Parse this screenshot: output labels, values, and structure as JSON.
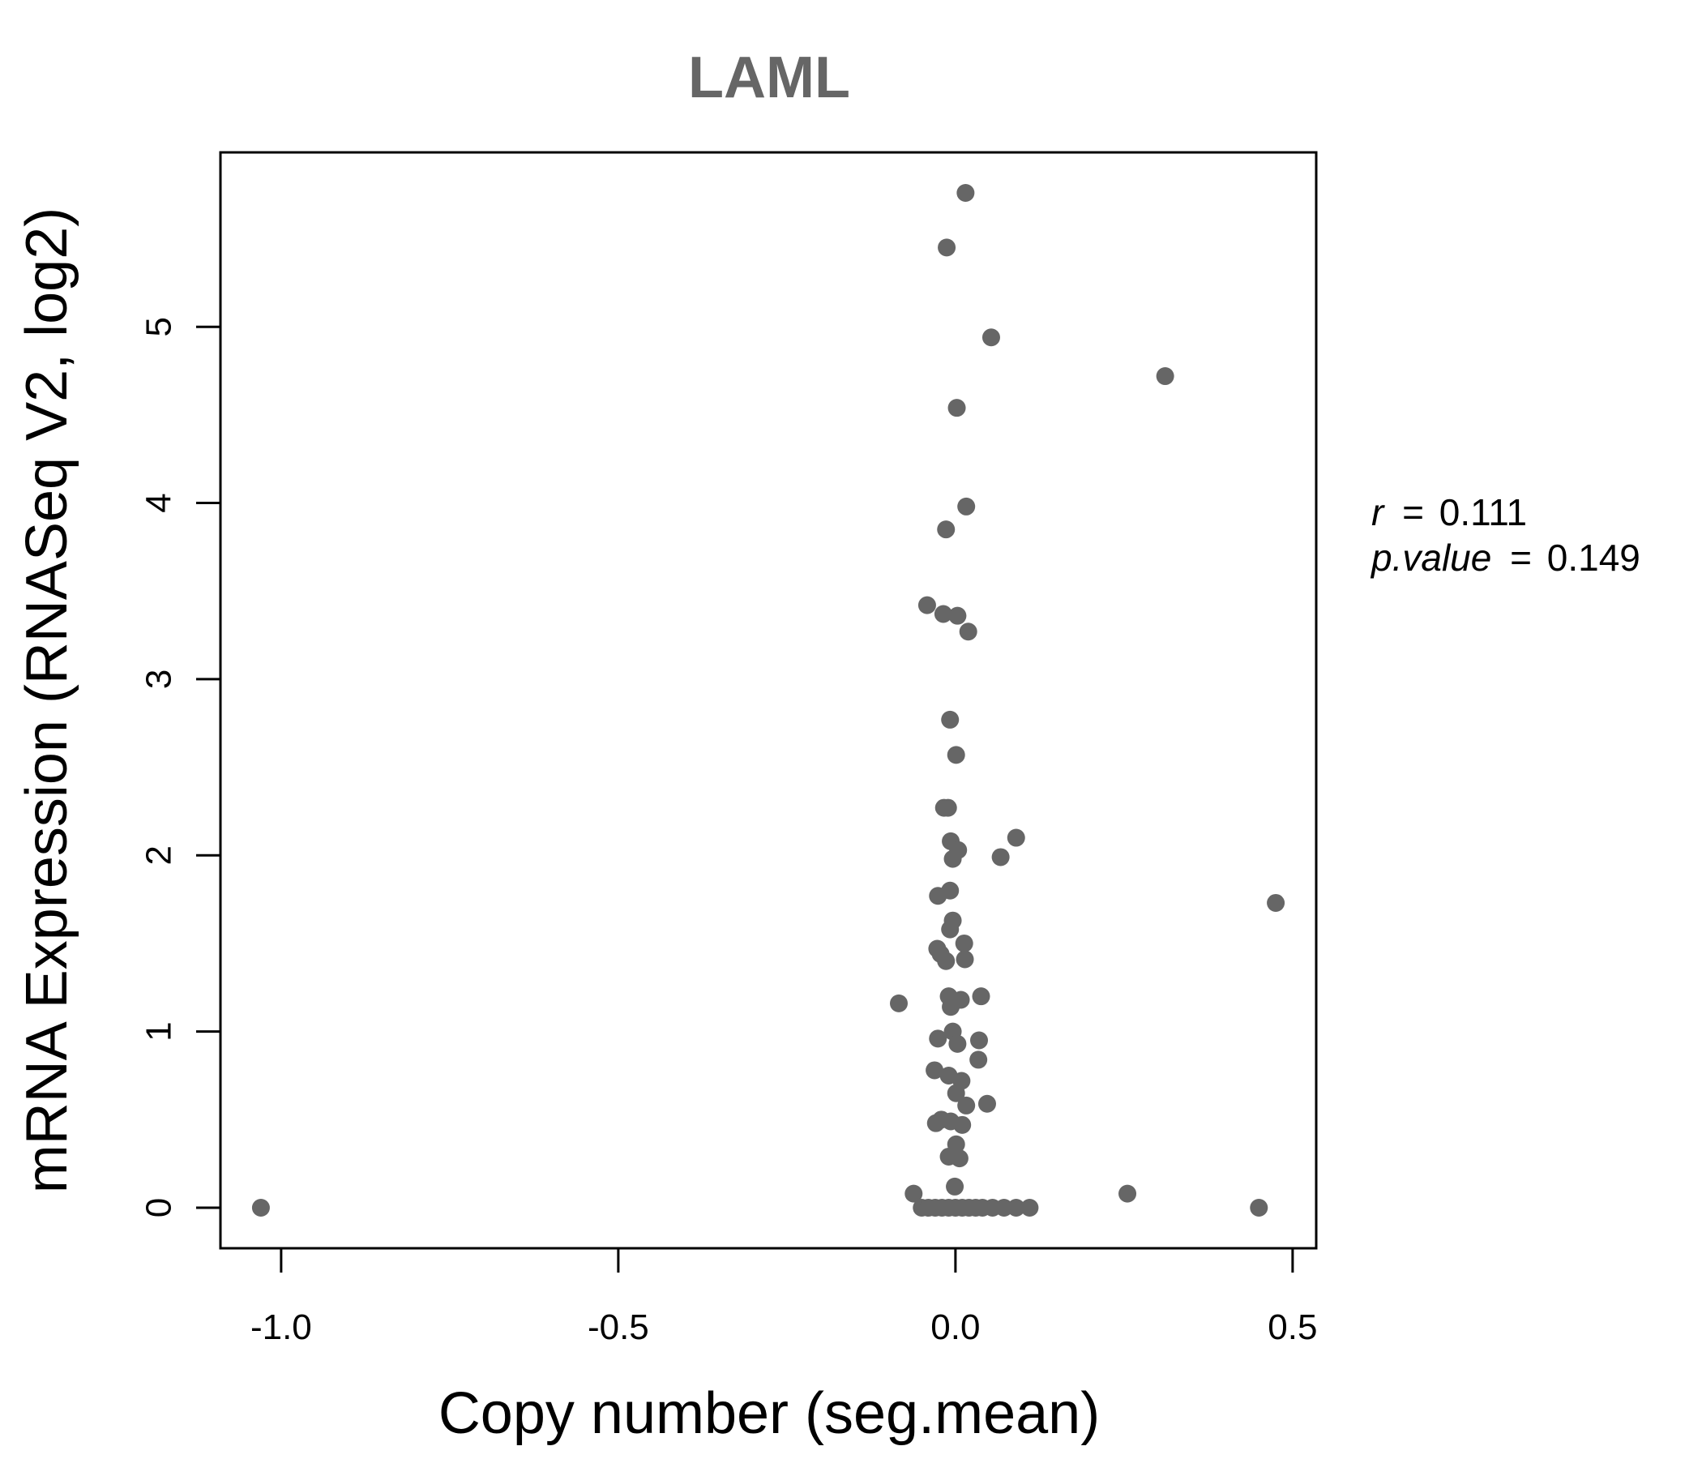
{
  "chart_data": {
    "type": "scatter",
    "title": "LAML",
    "xlabel": "Copy number (seg.mean)",
    "ylabel": "mRNA Expression (RNASeq V2, log2)",
    "xlim": [
      -1.09,
      0.535
    ],
    "ylim": [
      -0.23,
      5.99
    ],
    "x_ticks": [
      -1.0,
      -0.5,
      0.0,
      0.5
    ],
    "x_tick_labels": [
      "-1.0",
      "-0.5",
      "0.0",
      "0.5"
    ],
    "y_ticks": [
      0,
      1,
      2,
      3,
      4,
      5
    ],
    "y_tick_labels": [
      "0",
      "1",
      "2",
      "3",
      "4",
      "5"
    ],
    "grid": false,
    "legend": "none",
    "point_color": "#666666",
    "stats": {
      "r_label": "r",
      "r_value": "0.111",
      "p_label": "p.value",
      "p_value": "0.149"
    },
    "points": [
      {
        "x": 0.015,
        "y": 5.76
      },
      {
        "x": -0.013,
        "y": 5.45
      },
      {
        "x": 0.053,
        "y": 4.94
      },
      {
        "x": 0.311,
        "y": 4.72
      },
      {
        "x": 0.002,
        "y": 4.54
      },
      {
        "x": 0.016,
        "y": 3.98
      },
      {
        "x": -0.014,
        "y": 3.85
      },
      {
        "x": -0.042,
        "y": 3.42
      },
      {
        "x": -0.018,
        "y": 3.37
      },
      {
        "x": 0.003,
        "y": 3.36
      },
      {
        "x": 0.019,
        "y": 3.27
      },
      {
        "x": -0.008,
        "y": 2.77
      },
      {
        "x": 0.001,
        "y": 2.57
      },
      {
        "x": -0.017,
        "y": 2.27
      },
      {
        "x": -0.011,
        "y": 2.27
      },
      {
        "x": 0.09,
        "y": 2.1
      },
      {
        "x": -0.007,
        "y": 2.08
      },
      {
        "x": 0.004,
        "y": 2.03
      },
      {
        "x": 0.067,
        "y": 1.99
      },
      {
        "x": -0.004,
        "y": 1.98
      },
      {
        "x": -0.008,
        "y": 1.8
      },
      {
        "x": -0.026,
        "y": 1.77
      },
      {
        "x": 0.475,
        "y": 1.73
      },
      {
        "x": -0.004,
        "y": 1.63
      },
      {
        "x": -0.008,
        "y": 1.58
      },
      {
        "x": 0.013,
        "y": 1.5
      },
      {
        "x": -0.027,
        "y": 1.47
      },
      {
        "x": -0.022,
        "y": 1.44
      },
      {
        "x": 0.014,
        "y": 1.41
      },
      {
        "x": -0.014,
        "y": 1.4
      },
      {
        "x": 0.038,
        "y": 1.2
      },
      {
        "x": -0.01,
        "y": 1.2
      },
      {
        "x": 0.008,
        "y": 1.18
      },
      {
        "x": -0.002,
        "y": 1.17
      },
      {
        "x": -0.084,
        "y": 1.16
      },
      {
        "x": -0.007,
        "y": 1.14
      },
      {
        "x": -0.004,
        "y": 1.0
      },
      {
        "x": -0.026,
        "y": 0.96
      },
      {
        "x": 0.035,
        "y": 0.95
      },
      {
        "x": 0.003,
        "y": 0.93
      },
      {
        "x": 0.034,
        "y": 0.84
      },
      {
        "x": -0.031,
        "y": 0.78
      },
      {
        "x": -0.01,
        "y": 0.75
      },
      {
        "x": 0.009,
        "y": 0.72
      },
      {
        "x": 0.001,
        "y": 0.65
      },
      {
        "x": 0.047,
        "y": 0.59
      },
      {
        "x": 0.016,
        "y": 0.58
      },
      {
        "x": -0.021,
        "y": 0.5
      },
      {
        "x": -0.007,
        "y": 0.49
      },
      {
        "x": -0.029,
        "y": 0.48
      },
      {
        "x": 0.01,
        "y": 0.47
      },
      {
        "x": 0.001,
        "y": 0.36
      },
      {
        "x": -0.01,
        "y": 0.29
      },
      {
        "x": 0.006,
        "y": 0.28
      },
      {
        "x": -0.001,
        "y": 0.12
      },
      {
        "x": -0.062,
        "y": 0.08
      },
      {
        "x": 0.255,
        "y": 0.08
      },
      {
        "x": -1.03,
        "y": 0.0
      },
      {
        "x": -0.05,
        "y": 0.0
      },
      {
        "x": -0.04,
        "y": 0.0
      },
      {
        "x": -0.03,
        "y": 0.0
      },
      {
        "x": -0.02,
        "y": 0.0
      },
      {
        "x": -0.01,
        "y": 0.0
      },
      {
        "x": 0.0,
        "y": 0.0
      },
      {
        "x": 0.01,
        "y": 0.0
      },
      {
        "x": 0.02,
        "y": 0.0
      },
      {
        "x": 0.03,
        "y": 0.0
      },
      {
        "x": 0.04,
        "y": 0.0
      },
      {
        "x": 0.055,
        "y": 0.0
      },
      {
        "x": 0.072,
        "y": 0.0
      },
      {
        "x": 0.09,
        "y": 0.0
      },
      {
        "x": 0.11,
        "y": 0.0
      },
      {
        "x": 0.45,
        "y": 0.0
      }
    ]
  }
}
